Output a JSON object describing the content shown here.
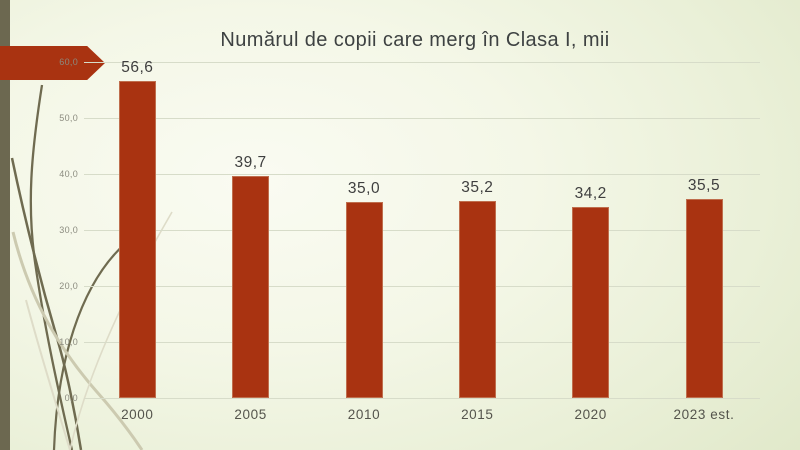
{
  "slide": {
    "title": "Numărul de copii care merg în Clasa I, mii"
  },
  "chart_data": {
    "type": "bar",
    "title": "Numărul de copii care merg în Clasa I, mii",
    "categories": [
      "2000",
      "2005",
      "2010",
      "2015",
      "2020",
      "2023 est."
    ],
    "values": [
      56.6,
      39.7,
      35.0,
      35.2,
      34.2,
      35.5
    ],
    "data_labels": [
      "56,6",
      "39,7",
      "35,0",
      "35,2",
      "34,2",
      "35,5"
    ],
    "y_axis": {
      "min": 0,
      "max": 60,
      "step": 10,
      "tick_labels": [
        "60,0",
        "50,0",
        "40,0",
        "30,0",
        "20,0",
        "10,0",
        "0,0"
      ]
    },
    "grid": true,
    "legend": "none",
    "bar_color": "#A93311",
    "gridline_color": "#D7DCC9",
    "value_label_color": "#3F3F3F",
    "axis_label_color": "#8B8B7F"
  },
  "decor": {
    "arrow_color": "#A93311",
    "strip_color": "#6C6850",
    "dark_curve_color": "#6F6B50",
    "light_curve_color": "#CCCAB0",
    "faint_curve_color": "#DEDCC8"
  }
}
